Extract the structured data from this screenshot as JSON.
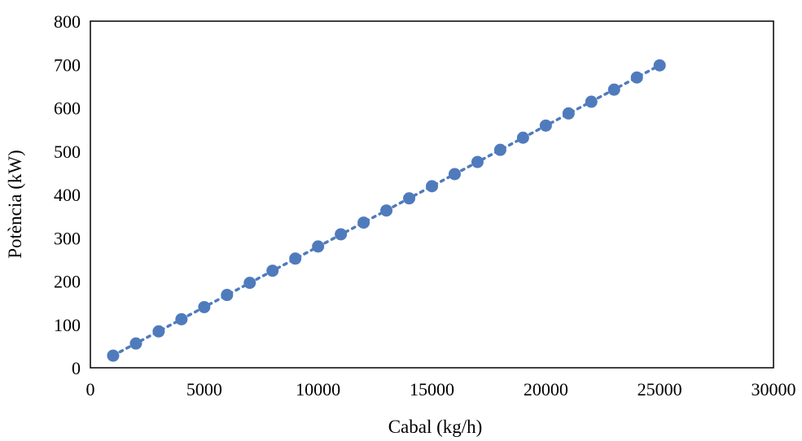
{
  "chart_data": {
    "type": "scatter",
    "title": "",
    "xlabel": "Cabal (kg/h)",
    "ylabel": "Potència (kW)",
    "xlim": [
      0,
      30000
    ],
    "ylim": [
      0,
      800
    ],
    "x_ticks": [
      "0",
      "5000",
      "10000",
      "15000",
      "20000",
      "25000",
      "30000"
    ],
    "y_ticks": [
      "0",
      "100",
      "200",
      "300",
      "400",
      "500",
      "600",
      "700",
      "800"
    ],
    "grid": false,
    "legend": "none",
    "series": [
      {
        "marker_color": "#4f7bbd",
        "trendline": "linear-dotted",
        "points": [
          {
            "x": 1000,
            "y": 28
          },
          {
            "x": 2000,
            "y": 56
          },
          {
            "x": 3000,
            "y": 84
          },
          {
            "x": 4000,
            "y": 112
          },
          {
            "x": 5000,
            "y": 140
          },
          {
            "x": 6000,
            "y": 168
          },
          {
            "x": 7000,
            "y": 196
          },
          {
            "x": 8000,
            "y": 224
          },
          {
            "x": 9000,
            "y": 252
          },
          {
            "x": 10000,
            "y": 280
          },
          {
            "x": 11000,
            "y": 308
          },
          {
            "x": 12000,
            "y": 335
          },
          {
            "x": 13000,
            "y": 363
          },
          {
            "x": 14000,
            "y": 391
          },
          {
            "x": 15000,
            "y": 419
          },
          {
            "x": 16000,
            "y": 447
          },
          {
            "x": 17000,
            "y": 475
          },
          {
            "x": 18000,
            "y": 503
          },
          {
            "x": 19000,
            "y": 531
          },
          {
            "x": 20000,
            "y": 559
          },
          {
            "x": 21000,
            "y": 587
          },
          {
            "x": 22000,
            "y": 614
          },
          {
            "x": 23000,
            "y": 642
          },
          {
            "x": 24000,
            "y": 670
          },
          {
            "x": 25000,
            "y": 698
          }
        ]
      }
    ]
  }
}
